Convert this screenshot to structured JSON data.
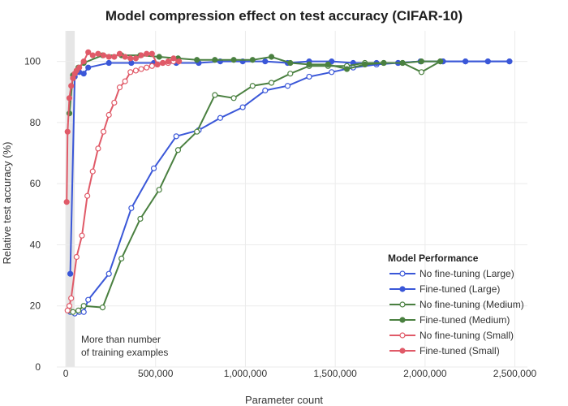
{
  "chart_data": {
    "type": "line",
    "title": "Model compression effect on test accuracy (CIFAR-10)",
    "xlabel": "Parameter count",
    "ylabel": "Relative test accuracy (%)",
    "xlim": [
      -50000,
      2570000
    ],
    "ylim": [
      0,
      110
    ],
    "xticks": [
      0,
      500000,
      1000000,
      1500000,
      2000000,
      2500000
    ],
    "xtick_labels": [
      "0",
      "500,000",
      "1,000,000",
      "1,500,000",
      "2,000,000",
      "2,500,000"
    ],
    "yticks": [
      0,
      20,
      40,
      60,
      80,
      100
    ],
    "ytick_labels": [
      "0",
      "20",
      "40",
      "60",
      "80",
      "100"
    ],
    "grid": true,
    "shaded_region": {
      "x0": 0,
      "x1": 50000,
      "label_lines": [
        "More than number",
        "of training examples"
      ]
    },
    "legend": {
      "title": "Model Performance",
      "position": "bottom-right"
    },
    "series": [
      {
        "name": "No fine-tuning (Large)",
        "color": "#3a57d8",
        "marker": "open",
        "x": [
          25000,
          50000,
          75000,
          100000,
          125000,
          240000,
          365000,
          490000,
          615000,
          740000,
          860000,
          985000,
          1110000,
          1235000,
          1355000,
          1480000,
          1600000,
          1730000,
          1850000,
          1975000,
          2100000,
          2225000,
          2350000,
          2470000
        ],
        "y": [
          18,
          17.5,
          18,
          18,
          22,
          30.5,
          52,
          65,
          75.5,
          77.5,
          81.5,
          85,
          90.5,
          92,
          95,
          96.5,
          98,
          99,
          99.5,
          100,
          100,
          100,
          100,
          100
        ]
      },
      {
        "name": "Fine-tuned (Large)",
        "color": "#3a57d8",
        "marker": "filled",
        "x": [
          25000,
          50000,
          75000,
          100000,
          125000,
          240000,
          365000,
          490000,
          615000,
          740000,
          860000,
          985000,
          1110000,
          1235000,
          1355000,
          1480000,
          1600000,
          1730000,
          1850000,
          1975000,
          2100000,
          2225000,
          2350000,
          2470000
        ],
        "y": [
          30.5,
          95,
          96.5,
          96,
          98,
          99.5,
          99.5,
          99.5,
          99.5,
          99.5,
          100,
          100,
          100,
          99.5,
          100,
          100,
          99.5,
          99.5,
          99.5,
          100,
          100,
          100,
          100,
          100
        ]
      },
      {
        "name": "No fine-tuning (Medium)",
        "color": "#4a8040",
        "marker": "open",
        "x": [
          20000,
          40000,
          70000,
          100000,
          205000,
          310000,
          415000,
          520000,
          625000,
          730000,
          830000,
          935000,
          1040000,
          1145000,
          1250000,
          1355000,
          1460000,
          1565000,
          1665000,
          1770000,
          1875000,
          1980000,
          2085000
        ],
        "y": [
          18.5,
          18,
          18.5,
          20,
          19.5,
          35.5,
          48.5,
          58,
          71,
          77,
          89,
          88,
          92,
          93,
          96,
          98.5,
          98.5,
          98.5,
          99.5,
          99.5,
          99.5,
          96.5,
          100
        ]
      },
      {
        "name": "Fine-tuned (Medium)",
        "color": "#4a8040",
        "marker": "filled",
        "x": [
          20000,
          40000,
          70000,
          100000,
          205000,
          310000,
          415000,
          520000,
          625000,
          730000,
          830000,
          935000,
          1040000,
          1145000,
          1250000,
          1355000,
          1460000,
          1565000,
          1665000,
          1770000,
          1875000,
          1980000,
          2085000
        ],
        "y": [
          83,
          95.5,
          98,
          99.5,
          102,
          102,
          102,
          101.5,
          101,
          100.5,
          100.5,
          100.5,
          100.5,
          101.5,
          99.5,
          99,
          99,
          97.5,
          99,
          99.5,
          99.5,
          100,
          100
        ]
      },
      {
        "name": "No fine-tuning (Small)",
        "color": "#e05a68",
        "marker": "open",
        "x": [
          10000,
          20000,
          30000,
          60000,
          90000,
          120000,
          150000,
          180000,
          210000,
          240000,
          270000,
          300000,
          330000,
          360000,
          390000,
          420000,
          450000,
          480000,
          510000,
          540000,
          570000,
          600000,
          630000
        ],
        "y": [
          18.5,
          20,
          22.5,
          36,
          43,
          56,
          64,
          71.5,
          77,
          82.5,
          86.5,
          91.5,
          93.5,
          96.5,
          97,
          97.5,
          98,
          98.5,
          99,
          99.5,
          99.5,
          100,
          100
        ]
      },
      {
        "name": "Fine-tuned (Small)",
        "color": "#e05a68",
        "marker": "filled",
        "x": [
          5000,
          10000,
          20000,
          30000,
          40000,
          50000,
          60000,
          75000,
          100000,
          125000,
          150000,
          180000,
          210000,
          240000,
          270000,
          300000,
          330000,
          360000,
          390000,
          420000,
          450000,
          480000,
          510000,
          540000,
          570000,
          600000,
          630000
        ],
        "y": [
          54,
          77,
          88,
          92,
          94.5,
          96,
          97,
          98,
          100,
          103,
          102,
          102.5,
          102,
          101.5,
          101.5,
          102.5,
          101.5,
          101,
          101,
          102,
          102.5,
          102.5,
          99,
          99.5,
          100,
          101,
          100
        ]
      }
    ]
  }
}
